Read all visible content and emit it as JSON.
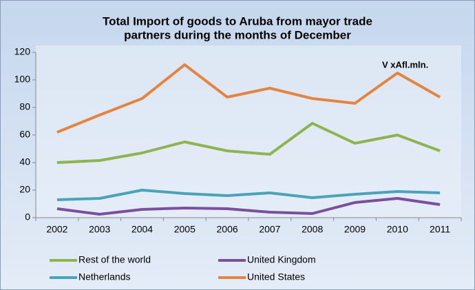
{
  "chart_data": {
    "type": "line",
    "title": [
      "Total Import of goods to Aruba from mayor trade",
      "partners during  the months of December"
    ],
    "annotation": "V xAfl.mln.",
    "categories": [
      "2002",
      "2003",
      "2004",
      "2005",
      "2006",
      "2007",
      "2008",
      "2009",
      "2010",
      "2011"
    ],
    "series": [
      {
        "name": "Rest of the world",
        "color": "#8eb34f",
        "values": [
          40,
          41.5,
          47,
          55,
          48.5,
          46,
          68.5,
          54,
          60,
          48.5
        ]
      },
      {
        "name": "United Kingdom",
        "color": "#7b4f9d",
        "values": [
          6.5,
          2.5,
          6,
          7,
          6.5,
          4,
          3,
          11,
          14,
          9.5
        ]
      },
      {
        "name": "Netherlands",
        "color": "#4aa3b8",
        "values": [
          13,
          14,
          20,
          17.5,
          16,
          18,
          14.5,
          17,
          19,
          18
        ]
      },
      {
        "name": "United States",
        "color": "#e5843f",
        "values": [
          62,
          74.5,
          86.5,
          111,
          87.5,
          94,
          86.5,
          83,
          105,
          87.5
        ]
      }
    ],
    "ylim": [
      0,
      120
    ],
    "yticks": [
      0,
      20,
      40,
      60,
      80,
      100,
      120
    ],
    "grid": false
  }
}
